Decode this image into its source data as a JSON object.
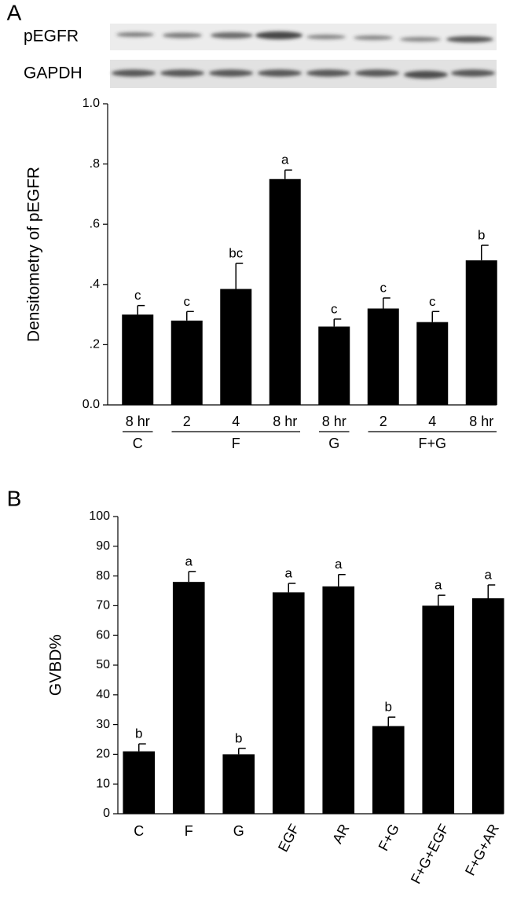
{
  "chart_data": [
    {
      "type": "bar",
      "panel_label": "A",
      "blot_labels": [
        "pEGFR",
        "GAPDH"
      ],
      "ylabel": "Densitometry of pEGFR",
      "categories": [
        "8 hr",
        "2",
        "4",
        "8 hr",
        "8 hr",
        "2",
        "4",
        "8 hr"
      ],
      "groups": [
        "C",
        "F",
        "F",
        "F",
        "G",
        "F+G",
        "F+G",
        "F+G"
      ],
      "values": [
        0.3,
        0.28,
        0.385,
        0.75,
        0.26,
        0.32,
        0.275,
        0.48
      ],
      "errors": [
        0.03,
        0.03,
        0.085,
        0.03,
        0.025,
        0.035,
        0.035,
        0.05
      ],
      "letters": [
        "c",
        "c",
        "bc",
        "a",
        "c",
        "c",
        "c",
        "b"
      ],
      "color": "#000000",
      "ylim": [
        0,
        1
      ],
      "yticks": [
        {
          "value": 0,
          "label": "0.0"
        },
        {
          "value": 0.2,
          "label": ".2"
        },
        {
          "value": 0.4,
          "label": ".4"
        },
        {
          "value": 0.6,
          "label": ".6"
        },
        {
          "value": 0.8,
          "label": ".8"
        },
        {
          "value": 1,
          "label": "1.0"
        }
      ]
    },
    {
      "type": "bar",
      "panel_label": "B",
      "ylabel": "GVBD%",
      "categories": [
        "C",
        "F",
        "G",
        "EGF",
        "AR",
        "F+G",
        "F+G+EGF",
        "F+G+AR"
      ],
      "values": [
        21,
        78,
        20,
        74.5,
        76.5,
        29.5,
        70,
        72.5
      ],
      "errors": [
        2.5,
        3.5,
        2,
        3,
        4,
        3,
        3.5,
        4.5
      ],
      "letters": [
        "b",
        "a",
        "b",
        "a",
        "a",
        "b",
        "a",
        "a"
      ],
      "color": "#000000",
      "ylim": [
        0,
        100
      ],
      "yticks": [
        0,
        10,
        20,
        30,
        40,
        50,
        60,
        70,
        80,
        90,
        100
      ]
    }
  ]
}
